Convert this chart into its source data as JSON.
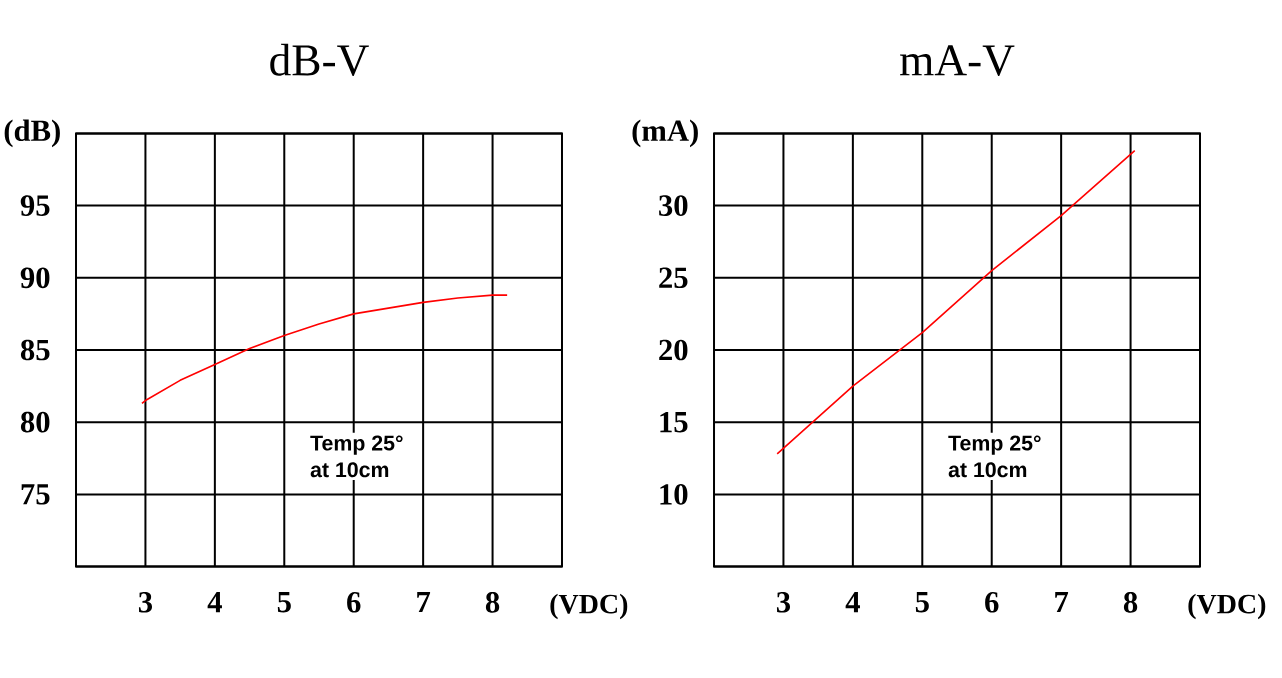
{
  "chart_data": [
    {
      "type": "line",
      "title": "dB-V",
      "xlabel": "(VDC)",
      "ylabel": "(dB)",
      "grid": true,
      "x": [
        2.95,
        3,
        3.5,
        4,
        4.5,
        5,
        5.5,
        6,
        6.5,
        7,
        7.5,
        8,
        8.21
      ],
      "values": [
        81.3,
        81.5,
        82.9,
        84.0,
        85.1,
        86.0,
        86.8,
        87.5,
        87.9,
        88.3,
        88.6,
        88.8,
        88.8
      ],
      "color": "#ff0000",
      "xlim": [
        2,
        9
      ],
      "xticks": [
        3,
        4,
        5,
        6,
        7,
        8
      ],
      "ylim": [
        70,
        100
      ],
      "yticks": [
        {
          "value": 70,
          "label": null
        },
        75,
        80,
        85,
        90,
        95,
        {
          "value": 100,
          "label": null
        }
      ],
      "annotations": [
        "Temp 25°",
        "at 10cm"
      ]
    },
    {
      "type": "line",
      "title": "mA-V",
      "xlabel": "(VDC)",
      "ylabel": "(mA)",
      "grid": true,
      "x": [
        2.91,
        4,
        5,
        6,
        7,
        8.06
      ],
      "values": [
        12.8,
        17.5,
        21.2,
        25.5,
        29.3,
        33.8
      ],
      "color": "#ff0000",
      "xlim": [
        2,
        9
      ],
      "xticks": [
        3,
        4,
        5,
        6,
        7,
        8
      ],
      "ylim": [
        5,
        35
      ],
      "yticks": [
        {
          "value": 5,
          "label": null
        },
        10,
        15,
        20,
        25,
        30,
        {
          "value": 35,
          "label": null
        }
      ],
      "annotations": [
        "Temp 25°",
        "at 10cm"
      ]
    }
  ]
}
